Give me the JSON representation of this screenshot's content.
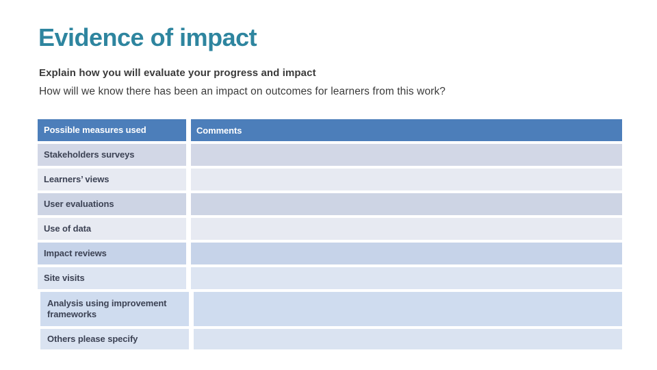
{
  "slide": {
    "title": "Evidence of impact",
    "intro_bold": "Explain how you will evaluate your progress and impact",
    "intro_question": "How will we know there has been an impact on outcomes for learners from this work?"
  },
  "table": {
    "headers": {
      "measures": "Possible measures used",
      "comments": "Comments"
    },
    "rows": [
      {
        "measure": "Stakeholders surveys",
        "comment": ""
      },
      {
        "measure": "Learners’ views",
        "comment": ""
      },
      {
        "measure": "User evaluations",
        "comment": ""
      },
      {
        "measure": "Use of data",
        "comment": ""
      },
      {
        "measure": "Impact reviews",
        "comment": ""
      },
      {
        "measure": "Site visits",
        "comment": ""
      },
      {
        "measure": "Analysis using improvement frameworks",
        "comment": ""
      },
      {
        "measure": "Others please specify",
        "comment": ""
      }
    ]
  },
  "colors": {
    "title_teal": "#2E859F",
    "body_text": "#3A3A3A",
    "table_header_bg": "#4C7EBA",
    "table_header_text": "#FFFFFF",
    "row_text": "#3C4254",
    "row_backgrounds": [
      "#D2D7E6",
      "#E7EAF2",
      "#CDD4E4",
      "#E7EAF2",
      "#C6D3E9",
      "#DDE5F2",
      "#CFDCEF",
      "#DAE3F1"
    ]
  }
}
